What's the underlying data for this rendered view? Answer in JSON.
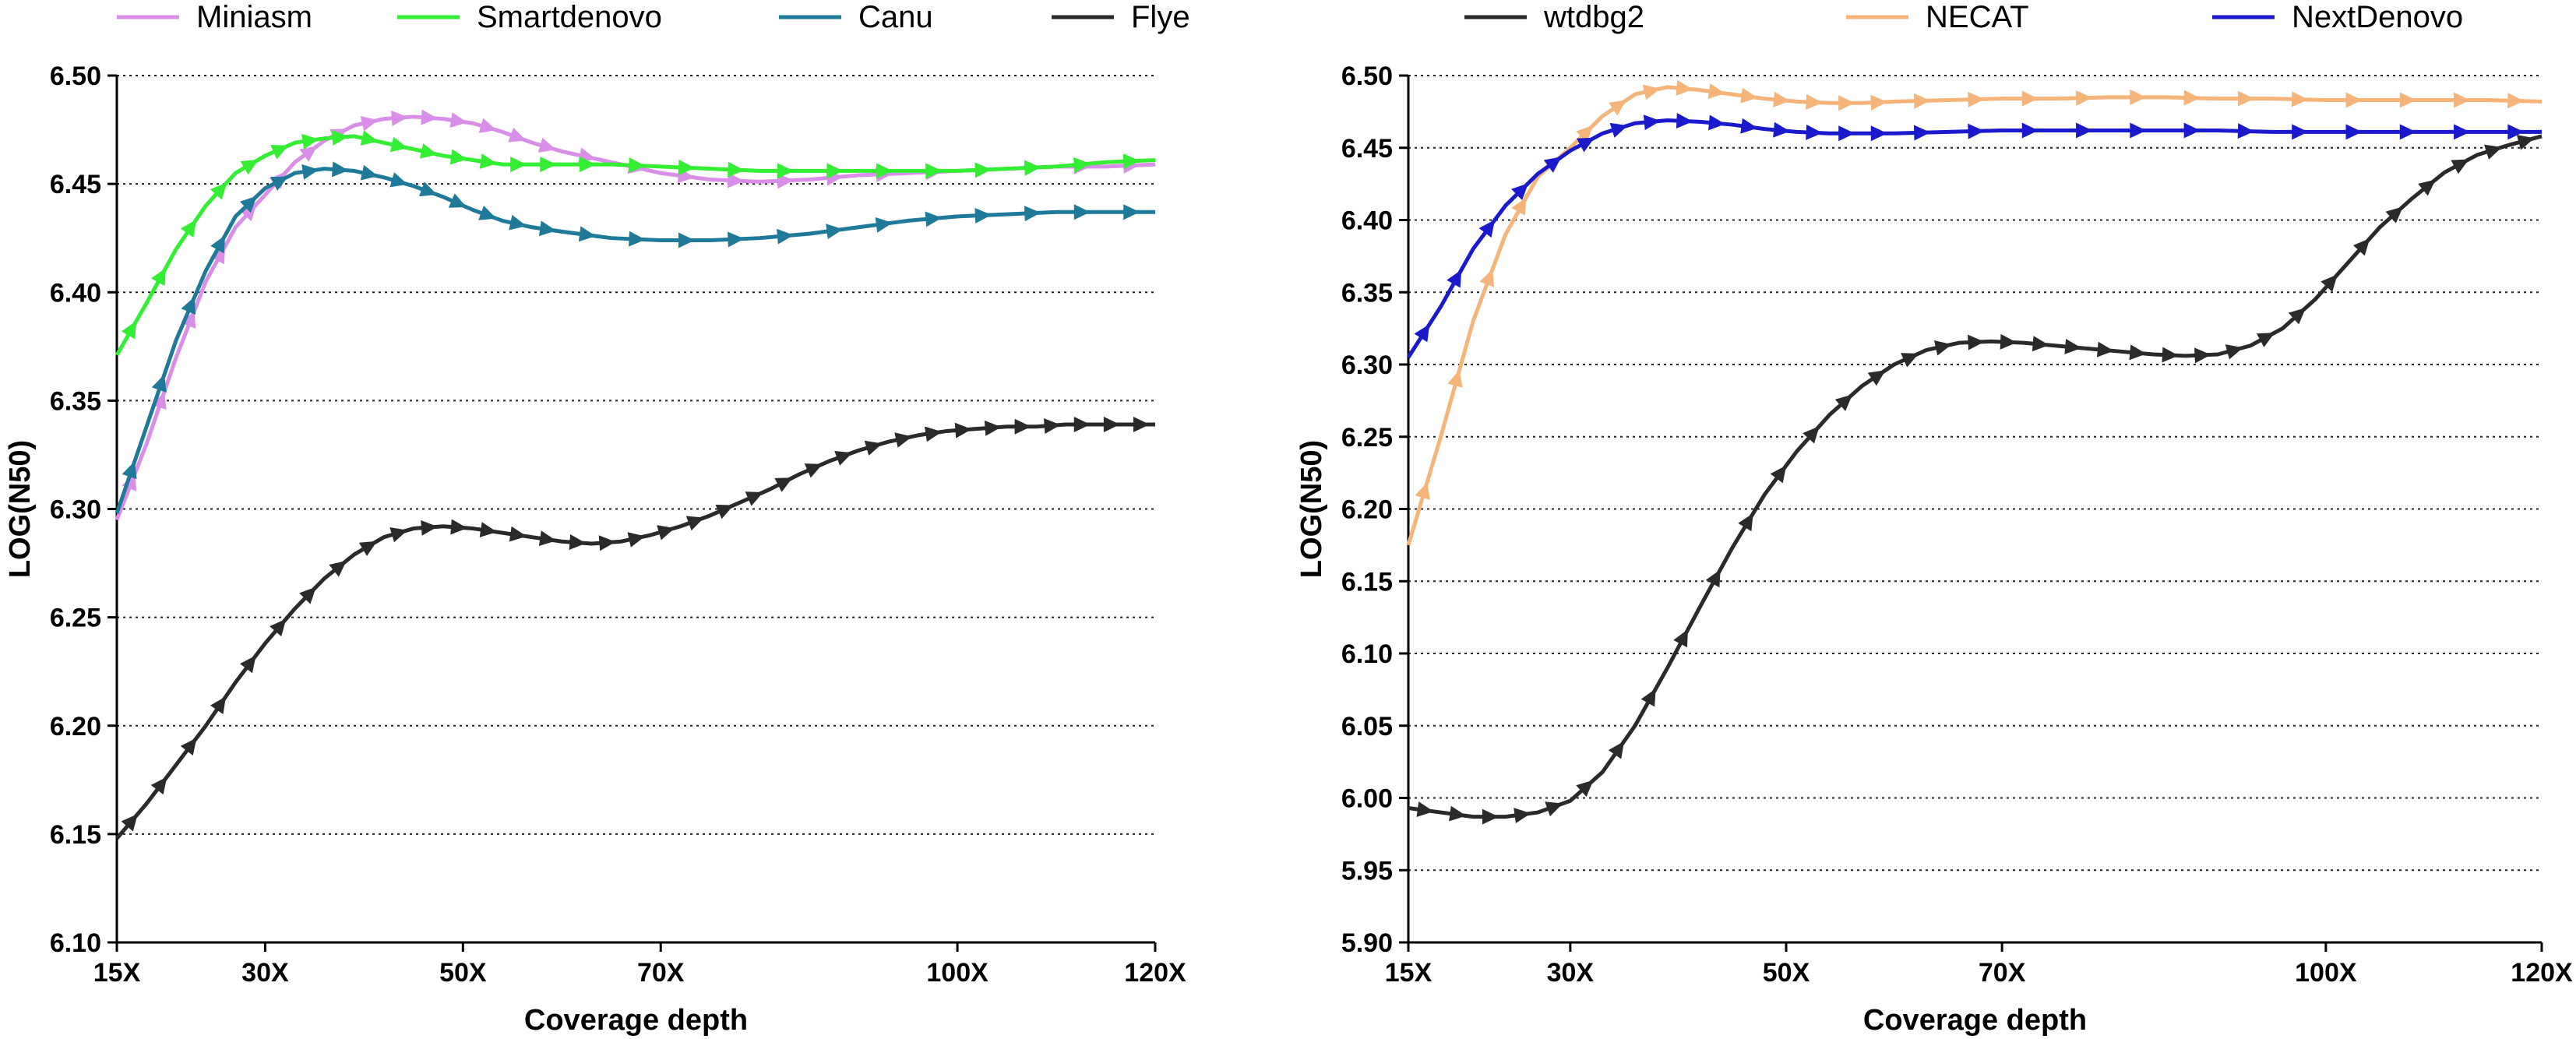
{
  "chart_data": [
    {
      "type": "line",
      "xlabel": "Coverage depth",
      "ylabel": "LOG(N50)",
      "xlim": [
        15,
        120
      ],
      "ylim": [
        6.1,
        6.5
      ],
      "xticks": [
        15,
        30,
        50,
        70,
        100,
        120
      ],
      "xtick_labels": [
        "15X",
        "30X",
        "50X",
        "70X",
        "100X",
        "120X"
      ],
      "yticks": [
        6.1,
        6.15,
        6.2,
        6.25,
        6.3,
        6.35,
        6.4,
        6.45,
        6.5
      ],
      "ytick_labels": [
        "6.10",
        "6.15",
        "6.20",
        "6.25",
        "6.30",
        "6.35",
        "6.40",
        "6.45",
        "6.50"
      ],
      "grid": "horizontal dotted",
      "legend_position": "top",
      "series": [
        {
          "name": "Miniasm",
          "color": "#d98ee8",
          "x": [
            15,
            18,
            21,
            24,
            27,
            30,
            33,
            36,
            39,
            42,
            45,
            48,
            51,
            54,
            57,
            60,
            65,
            70,
            75,
            80,
            85,
            90,
            95,
            100,
            105,
            110,
            115,
            120
          ],
          "y": [
            6.295,
            6.33,
            6.37,
            6.405,
            6.43,
            6.445,
            6.46,
            6.47,
            6.477,
            6.48,
            6.481,
            6.48,
            6.478,
            6.474,
            6.469,
            6.465,
            6.46,
            6.455,
            6.452,
            6.451,
            6.452,
            6.454,
            6.455,
            6.456,
            6.457,
            6.458,
            6.458,
            6.459
          ]
        },
        {
          "name": "Smartdenovo",
          "color": "#33ee33",
          "x": [
            15,
            18,
            21,
            24,
            27,
            30,
            33,
            36,
            39,
            42,
            45,
            48,
            51,
            54,
            57,
            60,
            65,
            70,
            75,
            80,
            85,
            90,
            95,
            100,
            105,
            110,
            115,
            120
          ],
          "y": [
            6.371,
            6.395,
            6.42,
            6.44,
            6.455,
            6.463,
            6.469,
            6.471,
            6.472,
            6.469,
            6.466,
            6.463,
            6.461,
            6.459,
            6.459,
            6.459,
            6.459,
            6.458,
            6.457,
            6.456,
            6.456,
            6.456,
            6.456,
            6.456,
            6.457,
            6.458,
            6.46,
            6.461
          ]
        },
        {
          "name": "Canu",
          "color": "#1f7a99",
          "x": [
            15,
            18,
            21,
            24,
            27,
            30,
            33,
            36,
            39,
            42,
            45,
            48,
            51,
            54,
            57,
            60,
            65,
            70,
            75,
            80,
            85,
            90,
            95,
            100,
            105,
            110,
            115,
            120
          ],
          "y": [
            6.298,
            6.338,
            6.378,
            6.41,
            6.435,
            6.448,
            6.455,
            6.457,
            6.456,
            6.453,
            6.449,
            6.444,
            6.438,
            6.433,
            6.43,
            6.428,
            6.425,
            6.424,
            6.424,
            6.425,
            6.427,
            6.43,
            6.433,
            6.435,
            6.436,
            6.437,
            6.437,
            6.437
          ]
        },
        {
          "name": "Flye",
          "color": "#2a2a2a",
          "x": [
            15,
            18,
            21,
            24,
            27,
            30,
            33,
            36,
            39,
            42,
            45,
            48,
            51,
            54,
            57,
            60,
            63,
            66,
            69,
            72,
            75,
            78,
            81,
            84,
            87,
            90,
            93,
            96,
            99,
            102,
            105,
            108,
            111,
            114,
            117,
            120
          ],
          "y": [
            6.148,
            6.164,
            6.182,
            6.2,
            6.22,
            6.238,
            6.254,
            6.268,
            6.279,
            6.287,
            6.291,
            6.292,
            6.291,
            6.289,
            6.287,
            6.285,
            6.284,
            6.285,
            6.288,
            6.292,
            6.297,
            6.303,
            6.309,
            6.316,
            6.322,
            6.327,
            6.331,
            6.334,
            6.336,
            6.337,
            6.338,
            6.338,
            6.339,
            6.339,
            6.339,
            6.339
          ]
        }
      ]
    },
    {
      "type": "line",
      "xlabel": "Coverage depth",
      "ylabel": "LOG(N50)",
      "xlim": [
        15,
        120
      ],
      "ylim": [
        5.9,
        6.5
      ],
      "xticks": [
        15,
        30,
        50,
        70,
        100,
        120
      ],
      "xtick_labels": [
        "15X",
        "30X",
        "50X",
        "70X",
        "100X",
        "120X"
      ],
      "yticks": [
        5.9,
        5.95,
        6.0,
        6.05,
        6.1,
        6.15,
        6.2,
        6.25,
        6.3,
        6.35,
        6.4,
        6.45,
        6.5
      ],
      "ytick_labels": [
        "5.90",
        "5.95",
        "6.00",
        "6.05",
        "6.10",
        "6.15",
        "6.20",
        "6.25",
        "6.30",
        "6.35",
        "6.40",
        "6.45",
        "6.50"
      ],
      "grid": "horizontal dotted",
      "legend_position": "top",
      "series": [
        {
          "name": "wtdbg2",
          "color": "#2a2a2a",
          "x": [
            15,
            18,
            21,
            24,
            27,
            30,
            33,
            36,
            39,
            42,
            45,
            48,
            51,
            54,
            57,
            60,
            63,
            66,
            69,
            72,
            75,
            78,
            81,
            84,
            87,
            90,
            93,
            96,
            99,
            102,
            105,
            108,
            111,
            114,
            117,
            120
          ],
          "y": [
            5.993,
            5.99,
            5.987,
            5.987,
            5.99,
            5.998,
            6.018,
            6.05,
            6.09,
            6.132,
            6.173,
            6.21,
            6.24,
            6.265,
            6.285,
            6.3,
            6.31,
            6.315,
            6.316,
            6.315,
            6.313,
            6.311,
            6.309,
            6.307,
            6.306,
            6.307,
            6.313,
            6.325,
            6.345,
            6.37,
            6.395,
            6.415,
            6.433,
            6.445,
            6.452,
            6.458
          ]
        },
        {
          "name": "NECAT",
          "color": "#f5b47a",
          "x": [
            15,
            18,
            21,
            24,
            27,
            30,
            33,
            36,
            39,
            42,
            45,
            48,
            51,
            54,
            57,
            60,
            65,
            70,
            75,
            80,
            85,
            90,
            95,
            100,
            105,
            110,
            115,
            120
          ],
          "y": [
            6.175,
            6.25,
            6.33,
            6.39,
            6.43,
            6.45,
            6.472,
            6.487,
            6.492,
            6.49,
            6.487,
            6.484,
            6.482,
            6.481,
            6.481,
            6.482,
            6.483,
            6.484,
            6.484,
            6.485,
            6.485,
            6.484,
            6.484,
            6.483,
            6.483,
            6.483,
            6.483,
            6.482
          ]
        },
        {
          "name": "NextDenovo",
          "color": "#1a1acc",
          "x": [
            15,
            18,
            21,
            24,
            27,
            30,
            33,
            36,
            39,
            42,
            45,
            48,
            51,
            54,
            57,
            60,
            65,
            70,
            75,
            80,
            85,
            90,
            95,
            100,
            105,
            110,
            115,
            120
          ],
          "y": [
            6.305,
            6.34,
            6.38,
            6.41,
            6.432,
            6.448,
            6.46,
            6.467,
            6.469,
            6.468,
            6.466,
            6.463,
            6.461,
            6.46,
            6.46,
            6.46,
            6.461,
            6.462,
            6.462,
            6.462,
            6.462,
            6.462,
            6.461,
            6.461,
            6.461,
            6.461,
            6.461,
            6.461
          ]
        }
      ]
    }
  ]
}
